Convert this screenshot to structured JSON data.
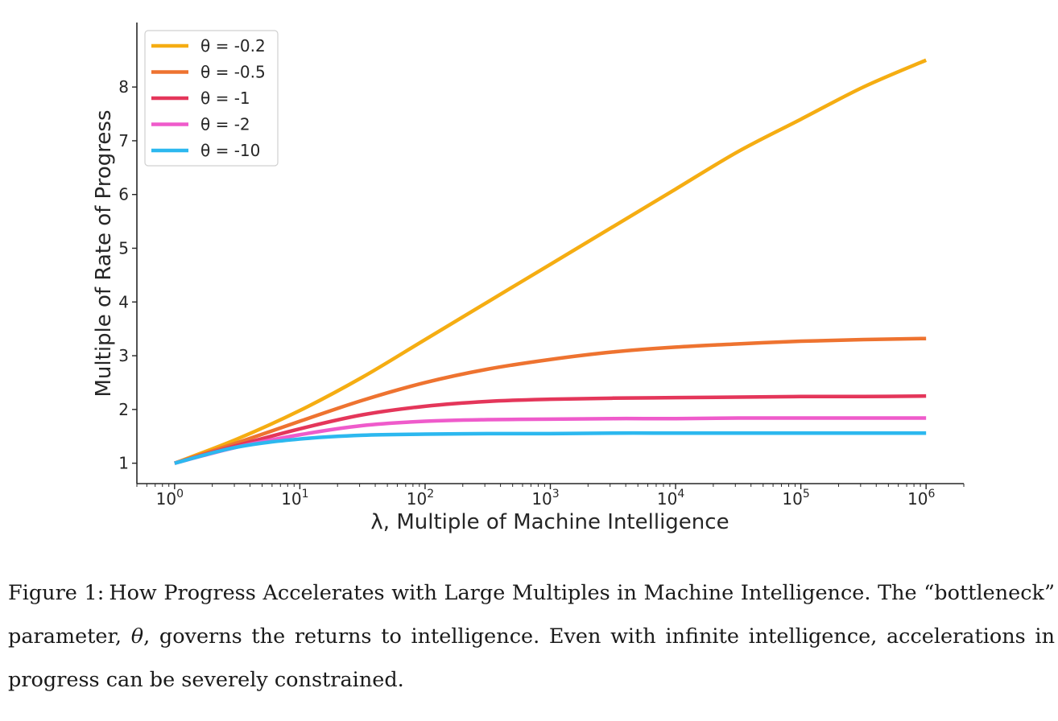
{
  "chart_data": {
    "type": "line",
    "xscale": "log",
    "title": "",
    "xlabel": "λ, Multiple of Machine Intelligence",
    "ylabel": "Multiple of Rate of Progress",
    "xlim": [
      0.5,
      2000000
    ],
    "ylim": [
      0.62,
      9.2
    ],
    "x_ticks": [
      {
        "value": 1,
        "base": "10",
        "exp": "0"
      },
      {
        "value": 10,
        "base": "10",
        "exp": "1"
      },
      {
        "value": 100,
        "base": "10",
        "exp": "2"
      },
      {
        "value": 1000,
        "base": "10",
        "exp": "3"
      },
      {
        "value": 10000,
        "base": "10",
        "exp": "4"
      },
      {
        "value": 100000,
        "base": "10",
        "exp": "5"
      },
      {
        "value": 1000000,
        "base": "10",
        "exp": "6"
      }
    ],
    "y_ticks": [
      "1",
      "2",
      "3",
      "4",
      "5",
      "6",
      "7",
      "8"
    ],
    "grid": false,
    "legend_position": "top-left",
    "x": [
      1,
      3.16,
      10,
      31.6,
      100,
      316,
      1000,
      3162,
      10000,
      31623,
      100000,
      316228,
      1000000
    ],
    "series": [
      {
        "name": "θ = -0.2",
        "color": "#f5ad12",
        "values": [
          1.0,
          1.45,
          1.98,
          2.6,
          3.3,
          4.0,
          4.7,
          5.4,
          6.1,
          6.8,
          7.4,
          8.0,
          8.5
        ]
      },
      {
        "name": "θ = -0.5",
        "color": "#ee7330",
        "values": [
          1.0,
          1.38,
          1.78,
          2.17,
          2.5,
          2.75,
          2.93,
          3.07,
          3.16,
          3.22,
          3.27,
          3.3,
          3.32
        ]
      },
      {
        "name": "θ = -1",
        "color": "#e4365a",
        "values": [
          1.0,
          1.33,
          1.64,
          1.9,
          2.06,
          2.15,
          2.19,
          2.21,
          2.22,
          2.23,
          2.24,
          2.24,
          2.25
        ]
      },
      {
        "name": "θ = -2",
        "color": "#ef5bcb",
        "values": [
          1.0,
          1.3,
          1.53,
          1.7,
          1.78,
          1.81,
          1.82,
          1.83,
          1.83,
          1.84,
          1.84,
          1.84,
          1.84
        ]
      },
      {
        "name": "θ = -10",
        "color": "#2cb8ef",
        "values": [
          1.0,
          1.3,
          1.45,
          1.52,
          1.54,
          1.55,
          1.55,
          1.56,
          1.56,
          1.56,
          1.56,
          1.56,
          1.56
        ]
      }
    ]
  },
  "caption": {
    "label": "Figure 1:",
    "text_1": "How Progress Accelerates with Large Multiples in Machine Intelligence. The “bottleneck” parameter,",
    "theta": "θ",
    "text_2": ", governs the returns to intelligence.  Even with infinite intelligence, accelerations in progress can be severely constrained."
  }
}
